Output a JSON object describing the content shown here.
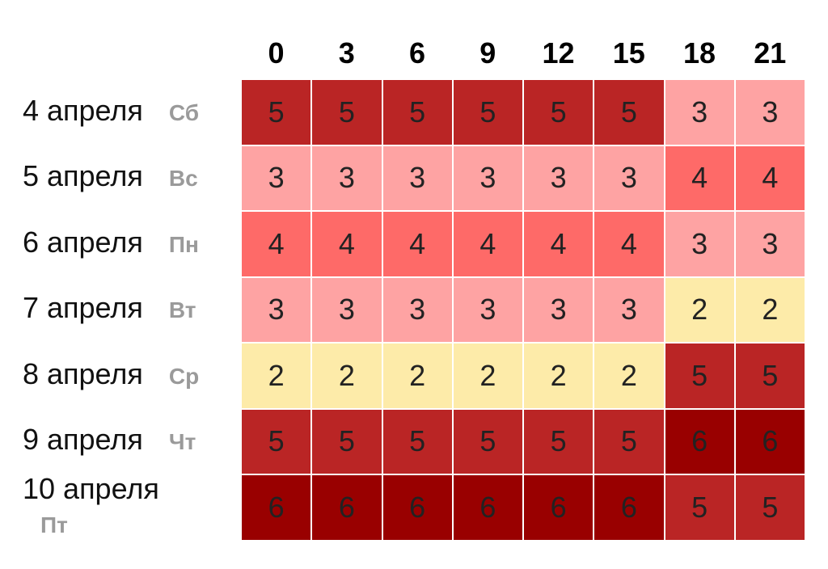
{
  "chart_data": {
    "type": "heatmap",
    "x": [
      "0",
      "3",
      "6",
      "9",
      "12",
      "15",
      "18",
      "21"
    ],
    "rows": [
      {
        "date": "4 апреля",
        "day": "Сб",
        "values": [
          5,
          5,
          5,
          5,
          5,
          5,
          3,
          3
        ]
      },
      {
        "date": "5 апреля",
        "day": "Вс",
        "values": [
          3,
          3,
          3,
          3,
          3,
          3,
          4,
          4
        ]
      },
      {
        "date": "6 апреля",
        "day": "Пн",
        "values": [
          4,
          4,
          4,
          4,
          4,
          4,
          3,
          3
        ]
      },
      {
        "date": "7 апреля",
        "day": "Вт",
        "values": [
          3,
          3,
          3,
          3,
          3,
          3,
          2,
          2
        ]
      },
      {
        "date": "8 апреля",
        "day": "Ср",
        "values": [
          2,
          2,
          2,
          2,
          2,
          2,
          5,
          5
        ]
      },
      {
        "date": "9 апреля",
        "day": "Чт",
        "values": [
          5,
          5,
          5,
          5,
          5,
          5,
          6,
          6
        ]
      },
      {
        "date": "10 апреля",
        "day": "Пт",
        "values": [
          6,
          6,
          6,
          6,
          6,
          6,
          5,
          5
        ]
      }
    ],
    "colorscale": [
      {
        "value": 2,
        "color": "#fdeba9"
      },
      {
        "value": 3,
        "color": "#fea3a3"
      },
      {
        "value": 4,
        "color": "#fe6a68"
      },
      {
        "value": 5,
        "color": "#ba2525"
      },
      {
        "value": 6,
        "color": "#990000"
      }
    ]
  }
}
